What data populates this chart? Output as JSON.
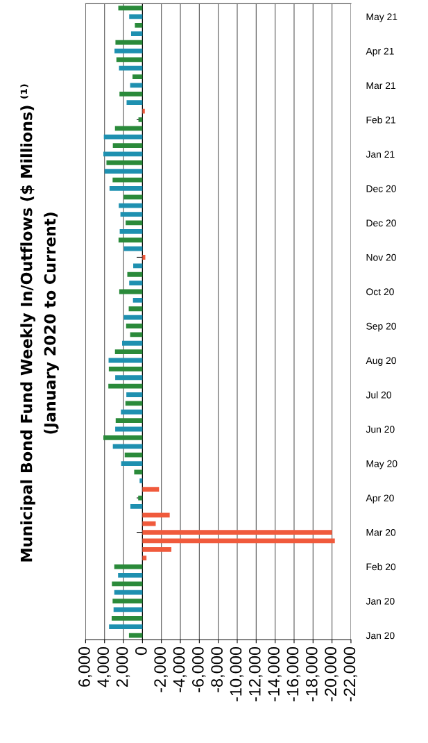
{
  "chart_data": {
    "type": "bar",
    "orientation": "horizontal",
    "title": "Municipal Bond Fund Weekly In/Outflows ($ Millions) ⁽¹⁾",
    "subtitle": "(January 2020 to Current)",
    "categories": [
      null,
      "May 21",
      null,
      null,
      null,
      "Apr 21",
      null,
      null,
      null,
      "Mar 21",
      null,
      null,
      null,
      "Feb 21",
      null,
      null,
      null,
      "Jan 21",
      null,
      null,
      null,
      "Dec 20",
      null,
      null,
      null,
      "Dec 20",
      null,
      null,
      null,
      "Nov 20",
      null,
      null,
      null,
      "Oct 20",
      null,
      null,
      null,
      "Sep 20",
      null,
      null,
      null,
      "Aug 20",
      null,
      null,
      null,
      "Jul 20",
      null,
      null,
      null,
      "Jun 20",
      null,
      null,
      null,
      "May 20",
      null,
      null,
      null,
      "Apr 20",
      null,
      null,
      null,
      "Mar 20",
      null,
      null,
      null,
      "Feb 20",
      null,
      null,
      null,
      "Jan 20",
      null,
      null,
      null,
      "Jan 20"
    ],
    "values": [
      2550,
      1400,
      800,
      1200,
      2850,
      2950,
      2750,
      2475,
      1050,
      1300,
      2425,
      1675,
      -250,
      425,
      2900,
      4075,
      3125,
      4125,
      3800,
      4000,
      3150,
      3475,
      2000,
      2500,
      2325,
      1775,
      2400,
      2525,
      1975,
      -300,
      975,
      1600,
      1400,
      2450,
      1000,
      1450,
      1975,
      1725,
      1300,
      2150,
      2900,
      3575,
      3550,
      2875,
      3600,
      1700,
      1800,
      2275,
      2825,
      2875,
      4125,
      3125,
      1875,
      2250,
      875,
      300,
      -1750,
      450,
      1275,
      -2875,
      -1400,
      -20000,
      -20300,
      -3050,
      -425,
      2975,
      2575,
      3225,
      2975,
      3150,
      3050,
      3250,
      3525,
      1425
    ],
    "colors": [
      "#2a8a3a",
      "#1e90b0",
      "#2a8a3a",
      "#1e90b0",
      "#2a8a3a",
      "#1e90b0",
      "#2a8a3a",
      "#1e90b0",
      "#2a8a3a",
      "#1e90b0",
      "#2a8a3a",
      "#1e90b0",
      "#f05a3c",
      "#2a8a3a",
      "#2a8a3a",
      "#1e90b0",
      "#2a8a3a",
      "#1e90b0",
      "#2a8a3a",
      "#1e90b0",
      "#2a8a3a",
      "#1e90b0",
      "#2a8a3a",
      "#1e90b0",
      "#1e90b0",
      "#2a8a3a",
      "#1e90b0",
      "#2a8a3a",
      "#1e90b0",
      "#f05a3c",
      "#1e90b0",
      "#2a8a3a",
      "#1e90b0",
      "#2a8a3a",
      "#1e90b0",
      "#2a8a3a",
      "#1e90b0",
      "#2a8a3a",
      "#2a8a3a",
      "#1e90b0",
      "#2a8a3a",
      "#1e90b0",
      "#2a8a3a",
      "#1e90b0",
      "#2a8a3a",
      "#1e90b0",
      "#2a8a3a",
      "#1e90b0",
      "#2a8a3a",
      "#1e90b0",
      "#2a8a3a",
      "#1e90b0",
      "#2a8a3a",
      "#1e90b0",
      "#2a8a3a",
      "#1e90b0",
      "#f05a3c",
      "#2a8a3a",
      "#1e90b0",
      "#f05a3c",
      "#f05a3c",
      "#f05a3c",
      "#f05a3c",
      "#f05a3c",
      "#f05a3c",
      "#2a8a3a",
      "#1e90b0",
      "#2a8a3a",
      "#1e90b0",
      "#2a8a3a",
      "#1e90b0",
      "#2a8a3a",
      "#1e90b0",
      "#2a8a3a"
    ],
    "xlim": [
      6000,
      -22000
    ],
    "xticks": [
      {
        "value": 6000,
        "label": "6,000"
      },
      {
        "value": 4000,
        "label": "4,000"
      },
      {
        "value": 2000,
        "label": "2,000"
      },
      0,
      {
        "value": -2000,
        "label": "-2,000"
      },
      {
        "value": -4000,
        "label": "-4,000"
      },
      {
        "value": -6000,
        "label": "-6,000"
      },
      {
        "value": -8000,
        "label": "-8,000"
      },
      {
        "value": -10000,
        "label": "-10,000"
      },
      {
        "value": -12000,
        "label": "-12,000"
      },
      {
        "value": -14000,
        "label": "-14,000"
      },
      {
        "value": -16000,
        "label": "-16,000"
      },
      {
        "value": -18000,
        "label": "-18,000"
      },
      {
        "value": -20000,
        "label": "-20,000"
      },
      {
        "value": -22000,
        "label": "-22,000"
      }
    ],
    "grid": "x"
  }
}
